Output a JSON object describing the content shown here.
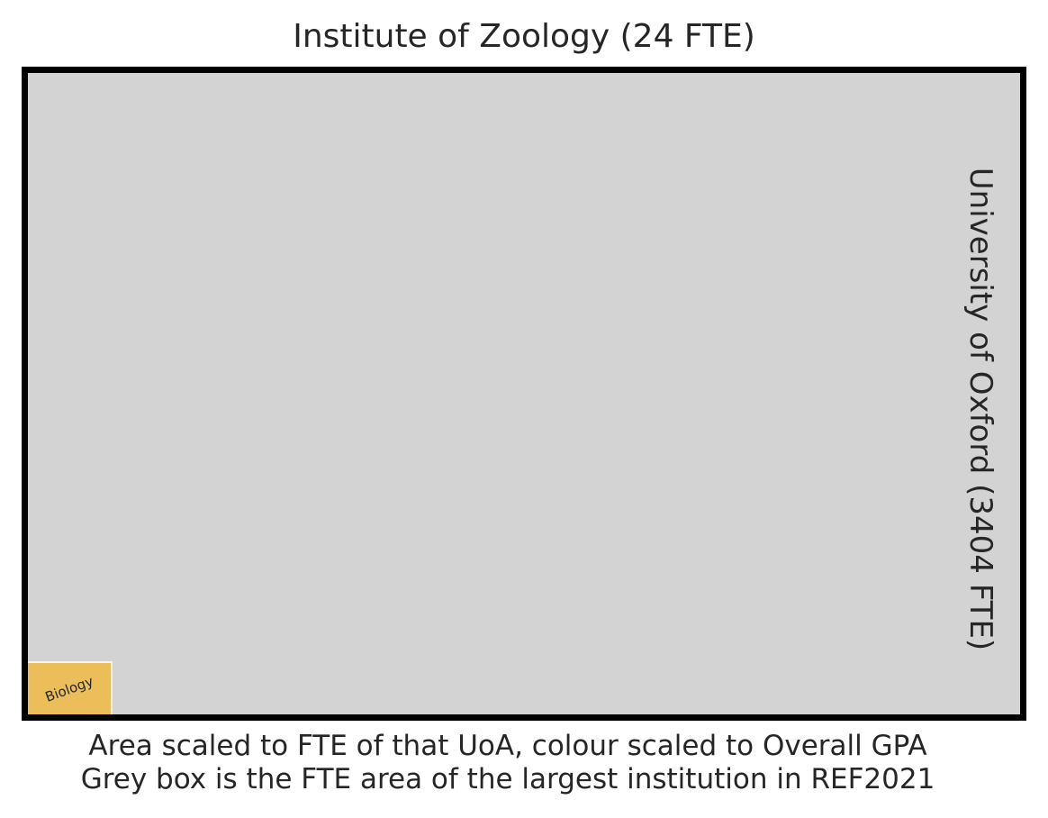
{
  "chart_data": {
    "type": "treemap",
    "title": "Institute of Zoology (24 FTE)",
    "institution_label": "University of Oxford (3404 FTE)",
    "reference_fte": 3404,
    "total_fte": 24,
    "units": [
      {
        "name": "Biology",
        "fte": 24,
        "color": "#ecbe5a"
      }
    ],
    "background_color": "#d3d3d3",
    "caption": [
      "Area scaled to FTE of that UoA, colour scaled to Overall GPA",
      "Grey box is the FTE area of the largest institution in REF2021"
    ]
  }
}
